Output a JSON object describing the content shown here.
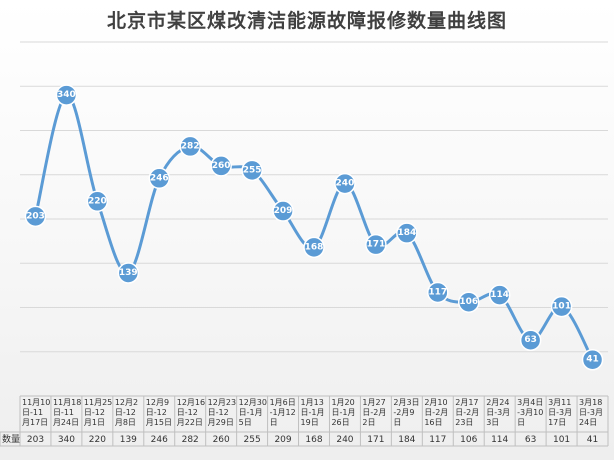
{
  "chart_data": {
    "type": "line",
    "title": "北京市某区煤改清洁能源故障报修数量曲线图",
    "series_name": "数量",
    "categories": [
      [
        "11月10",
        "日-11",
        "月17日"
      ],
      [
        "11月18",
        "日-11",
        "月24日"
      ],
      [
        "11月25",
        "日-12",
        "月1日"
      ],
      [
        "12月2",
        "日-12",
        "月8日"
      ],
      [
        "12月9",
        "日-12",
        "月15日"
      ],
      [
        "12月16",
        "日-12",
        "月22日"
      ],
      [
        "12月23",
        "日-12",
        "月29日"
      ],
      [
        "12月30",
        "日-1月",
        "5日"
      ],
      [
        "1月6日",
        "-1月12",
        "日"
      ],
      [
        "1月13",
        "日-1月",
        "19日"
      ],
      [
        "1月20",
        "日-1月",
        "26日"
      ],
      [
        "1月27",
        "日-2月",
        "2日"
      ],
      [
        "2月3日",
        "-2月9",
        "日"
      ],
      [
        "2月10",
        "日-2月",
        "16日"
      ],
      [
        "2月17",
        "日-2月",
        "23日"
      ],
      [
        "2月24",
        "日-3月",
        "3日"
      ],
      [
        "3月4日",
        "-3月10",
        "日"
      ],
      [
        "3月11",
        "日-3月",
        "17日"
      ],
      [
        "3月18",
        "日-3月",
        "24日"
      ]
    ],
    "values": [
      203,
      340,
      220,
      139,
      246,
      282,
      260,
      255,
      209,
      168,
      240,
      171,
      184,
      117,
      106,
      114,
      63,
      101,
      41
    ],
    "ylim": [
      0,
      400
    ],
    "grid": true,
    "legend": "data-table-below",
    "colors": {
      "line": "#5b9bd5",
      "grid": "#d9d9d9",
      "label": "#ffffff"
    }
  }
}
